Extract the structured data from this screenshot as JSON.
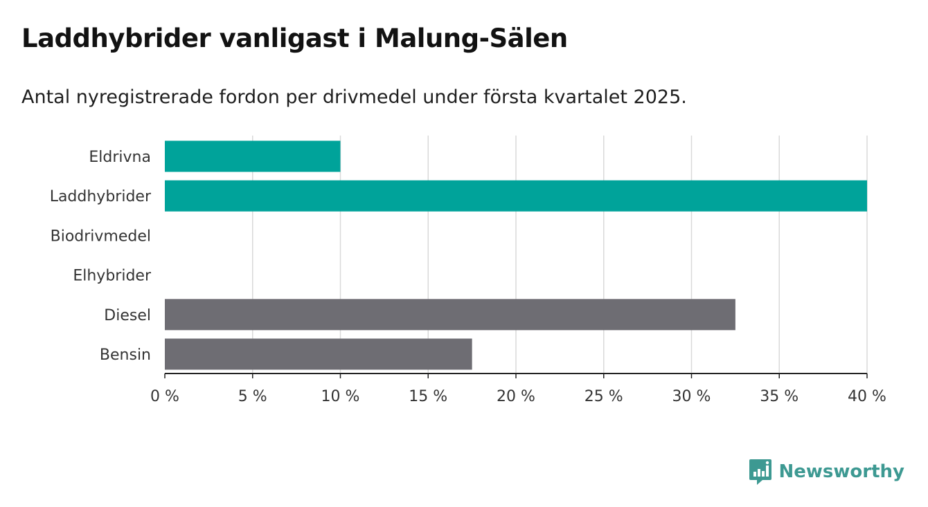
{
  "header": {
    "title": "Laddhybrider vanligast i Malung-Sälen",
    "subtitle": "Antal nyregistrerade fordon per drivmedel under första kvartalet 2025."
  },
  "chart_data": {
    "type": "bar",
    "orientation": "horizontal",
    "categories": [
      "Eldrivna",
      "Laddhybrider",
      "Biodrivmedel",
      "Elhybrider",
      "Diesel",
      "Bensin"
    ],
    "values": [
      10,
      40,
      0,
      0,
      32.5,
      17.5
    ],
    "bar_colors": [
      "#00a39a",
      "#00a39a",
      "#00a39a",
      "#00a39a",
      "#6e6d73",
      "#6e6d73"
    ],
    "xlim": [
      0,
      40
    ],
    "xticks": [
      0,
      5,
      10,
      15,
      20,
      25,
      30,
      35,
      40
    ],
    "xtick_labels": [
      "0 %",
      "5 %",
      "10 %",
      "15 %",
      "20 %",
      "25 %",
      "30 %",
      "35 %",
      "40 %"
    ],
    "grid": "vertical",
    "title": "Laddhybrider vanligast i Malung-Sälen",
    "subtitle": "Antal nyregistrerade fordon per drivmedel under första kvartalet 2025."
  },
  "brand": {
    "name": "Newsworthy",
    "color": "#3d9992",
    "icon": "bar-chart-logo-icon"
  }
}
